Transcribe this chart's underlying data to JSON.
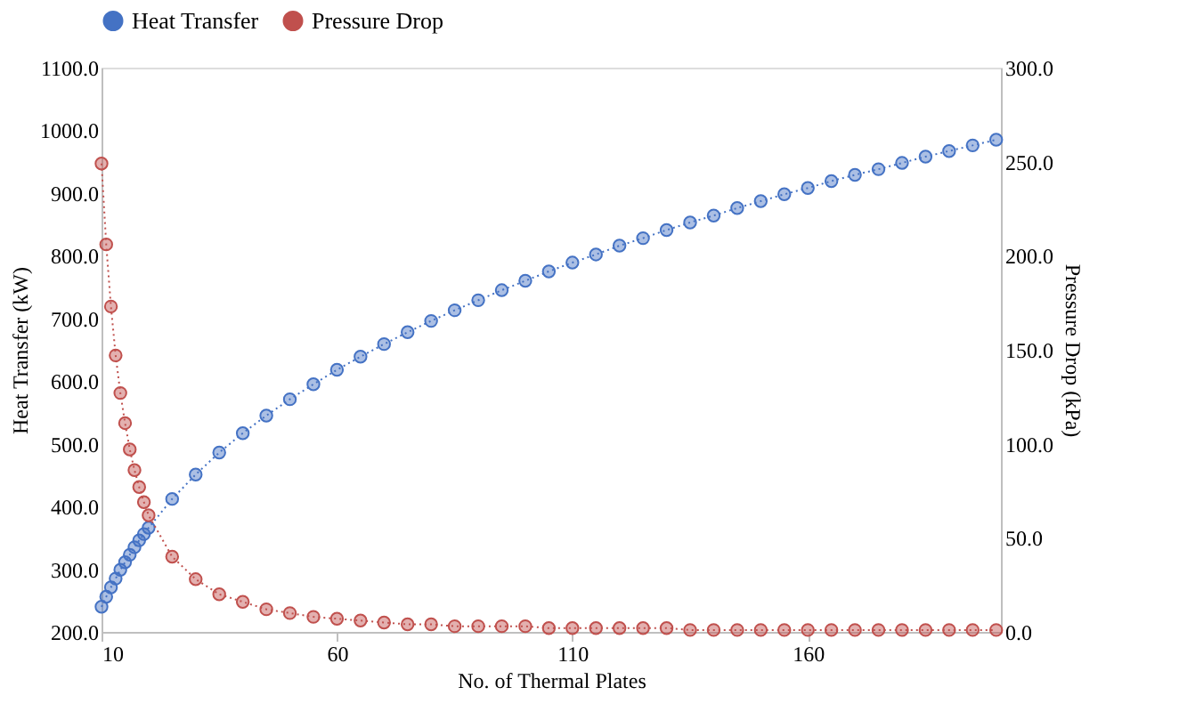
{
  "chart_data": {
    "type": "line",
    "xlabel": "No. of Thermal Plates",
    "ylabel": "Heat Transfer (kW)",
    "y2label": "Pressure Drop (kPa)",
    "x": [
      10,
      11,
      12,
      13,
      14,
      15,
      16,
      17,
      18,
      19,
      20,
      25,
      30,
      35,
      40,
      45,
      50,
      55,
      60,
      65,
      70,
      75,
      80,
      85,
      90,
      95,
      100,
      105,
      110,
      115,
      120,
      125,
      130,
      135,
      140,
      145,
      150,
      155,
      160,
      165,
      170,
      175,
      180,
      185,
      190,
      195,
      200
    ],
    "series": [
      {
        "name": "Heat Transfer",
        "color": "#4472c4",
        "values": [
          240,
          256,
          271,
          285,
          299,
          311,
          323,
          335,
          346,
          356,
          366,
          412,
          451,
          486,
          517,
          545,
          571,
          595,
          618,
          639,
          659,
          678,
          696,
          713,
          729,
          745,
          760,
          775,
          789,
          802,
          816,
          828,
          841,
          853,
          864,
          876,
          887,
          898,
          908,
          919,
          929,
          938,
          948,
          958,
          967,
          976,
          985
        ]
      },
      {
        "name": "Pressure Drop",
        "color": "#c0504d",
        "axis": "y2",
        "values": [
          249,
          206,
          173,
          147,
          127,
          111,
          97,
          86,
          77,
          69,
          62,
          40,
          28,
          20,
          16,
          12,
          10,
          8,
          7,
          6,
          5,
          4,
          4,
          3,
          3,
          3,
          3,
          2,
          2,
          2,
          2,
          2,
          2,
          1,
          1,
          1,
          1,
          1,
          1,
          1,
          1,
          1,
          1,
          1,
          1,
          1,
          1
        ]
      }
    ],
    "xlim": [
      10,
      201
    ],
    "xticks": [
      10,
      60,
      110,
      160
    ],
    "ylim": [
      200,
      1100
    ],
    "yticks": [
      {
        "value": 200,
        "label": "200.0"
      },
      {
        "value": 300,
        "label": "300.0"
      },
      {
        "value": 400,
        "label": "400.0"
      },
      {
        "value": 500,
        "label": "500.0"
      },
      {
        "value": 600,
        "label": "600.0"
      },
      {
        "value": 700,
        "label": "700.0"
      },
      {
        "value": 800,
        "label": "800.0"
      },
      {
        "value": 900,
        "label": "900.0"
      },
      {
        "value": 1000,
        "label": "1000.0"
      },
      {
        "value": 1100,
        "label": "1100.0"
      }
    ],
    "y2lim": [
      0,
      300
    ],
    "y2ticks": [
      {
        "value": 0,
        "label": "0.0"
      },
      {
        "value": 50,
        "label": "50.0"
      },
      {
        "value": 100,
        "label": "100.0"
      },
      {
        "value": 150,
        "label": "150.0"
      },
      {
        "value": 200,
        "label": "200.0"
      },
      {
        "value": 250,
        "label": "250.0"
      },
      {
        "value": 300,
        "label": "300.0"
      }
    ],
    "grid": false,
    "legend": "top",
    "marker": "circle",
    "line_style": "dotted"
  }
}
